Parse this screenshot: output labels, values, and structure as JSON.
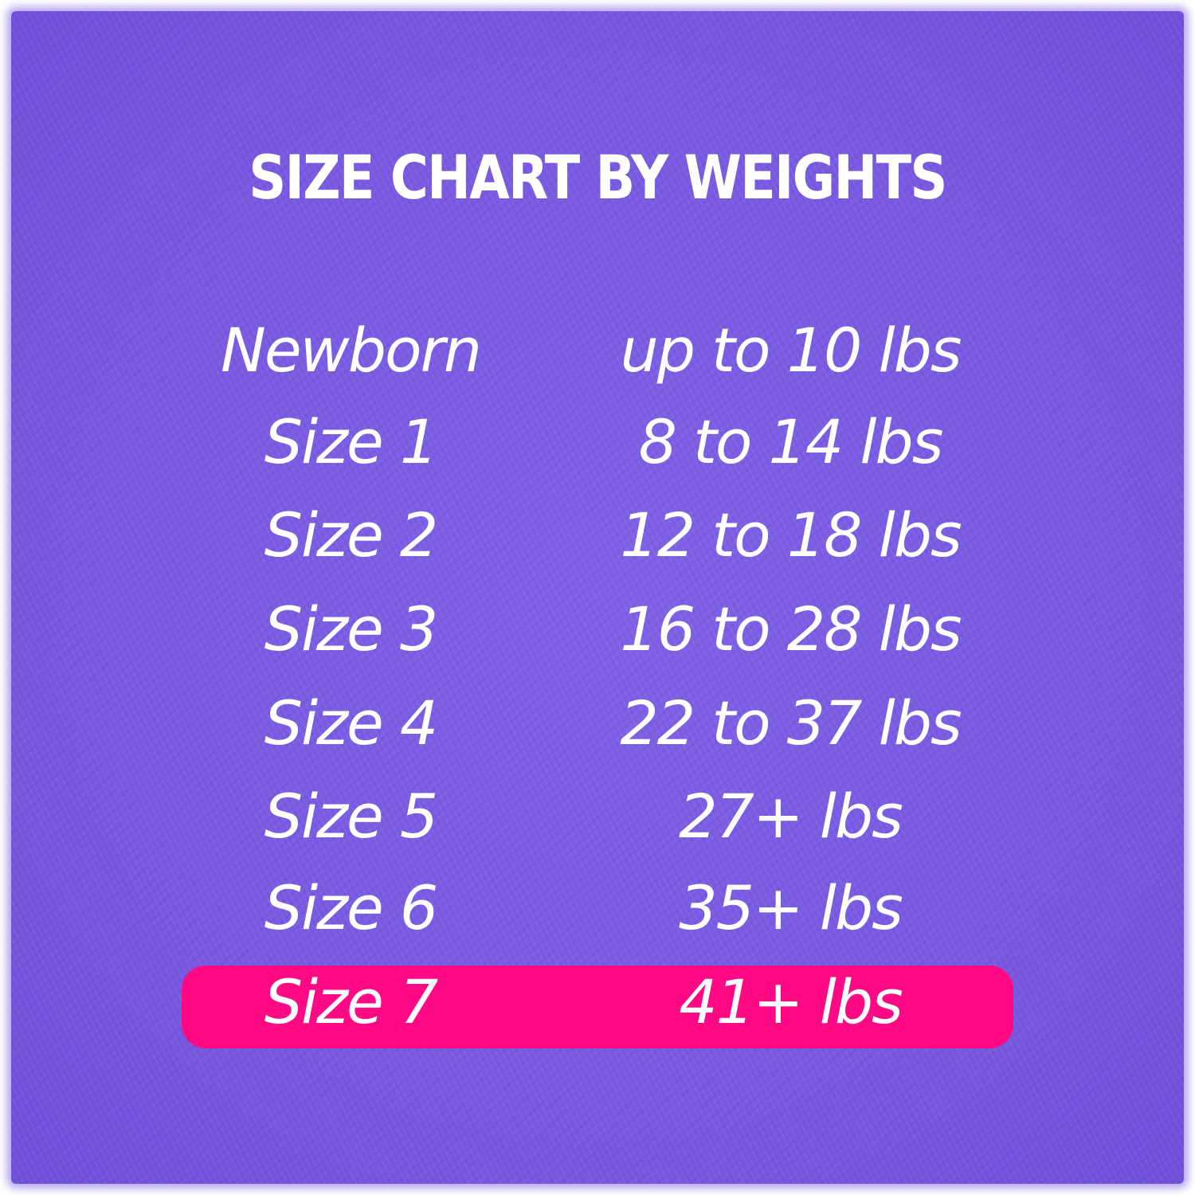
{
  "title": "SIZE CHART BY WEIGHTS",
  "colors": {
    "background": "#7758df",
    "highlight": "#ff0a84",
    "text": "#ffffff"
  },
  "rows": [
    {
      "size": "Newborn",
      "weight": "up to 10 lbs",
      "highlighted": false
    },
    {
      "size": "Size 1",
      "weight": "8 to 14 lbs",
      "highlighted": false
    },
    {
      "size": "Size 2",
      "weight": "12 to 18 lbs",
      "highlighted": false
    },
    {
      "size": "Size 3",
      "weight": "16 to 28 lbs",
      "highlighted": false
    },
    {
      "size": "Size 4",
      "weight": "22 to 37 lbs",
      "highlighted": false
    },
    {
      "size": "Size 5",
      "weight": "27+ lbs",
      "highlighted": false
    },
    {
      "size": "Size 6",
      "weight": "35+ lbs",
      "highlighted": false
    },
    {
      "size": "Size 7",
      "weight": "41+ lbs",
      "highlighted": true
    }
  ]
}
